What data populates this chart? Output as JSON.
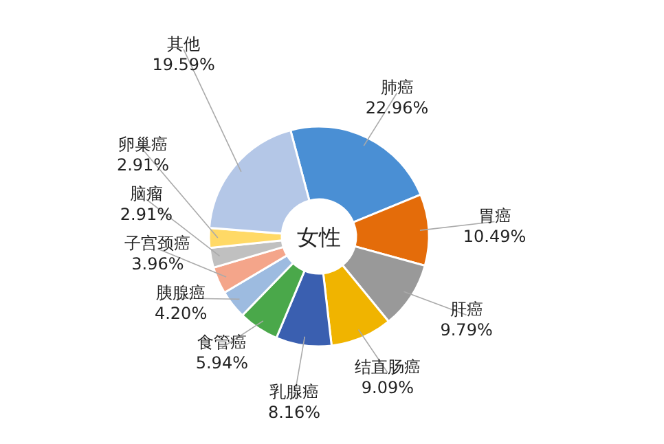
{
  "chart_data": {
    "type": "donut",
    "title": "女性",
    "categories": [
      "肺癌",
      "胃癌",
      "肝癌",
      "结直肠癌",
      "乳腺癌",
      "食管癌",
      "胰腺癌",
      "子宫颈癌",
      "脑瘤",
      "卵巢癌",
      "其他"
    ],
    "values": [
      22.96,
      10.49,
      9.79,
      9.09,
      8.16,
      5.94,
      4.2,
      3.96,
      2.91,
      2.91,
      19.59
    ],
    "value_labels": [
      "22.96%",
      "10.49%",
      "9.79%",
      "9.09%",
      "8.16%",
      "5.94%",
      "4.20%",
      "3.96%",
      "2.91%",
      "2.91%",
      "19.59%"
    ],
    "colors": [
      "#4a8fd4",
      "#e46c0a",
      "#999999",
      "#f0b400",
      "#3a5fb0",
      "#4aa84a",
      "#9dbbe0",
      "#f4a58a",
      "#c0c0c0",
      "#ffd966",
      "#b4c7e7"
    ]
  }
}
